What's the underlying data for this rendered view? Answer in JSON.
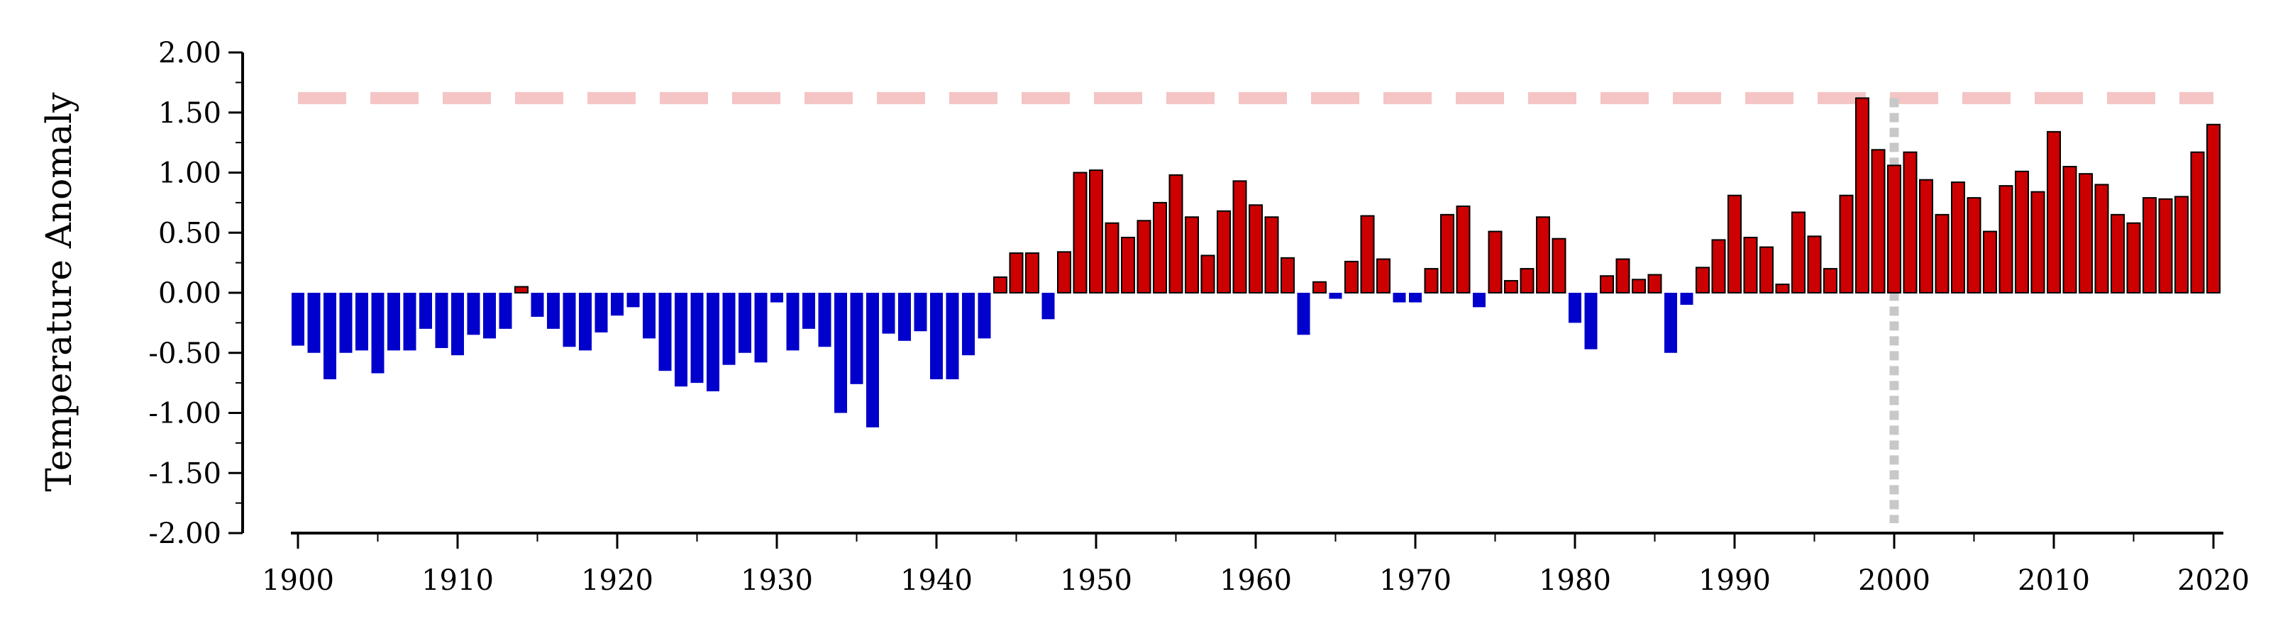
{
  "chart_data": {
    "type": "bar",
    "title": "",
    "xlabel": "",
    "ylabel": "Temperature Anomaly",
    "x": [
      1900,
      1901,
      1902,
      1903,
      1904,
      1905,
      1906,
      1907,
      1908,
      1909,
      1910,
      1911,
      1912,
      1913,
      1914,
      1915,
      1916,
      1917,
      1918,
      1919,
      1920,
      1921,
      1922,
      1923,
      1924,
      1925,
      1926,
      1927,
      1928,
      1929,
      1930,
      1931,
      1932,
      1933,
      1934,
      1935,
      1936,
      1937,
      1938,
      1939,
      1940,
      1941,
      1942,
      1943,
      1944,
      1945,
      1946,
      1947,
      1948,
      1949,
      1950,
      1951,
      1952,
      1953,
      1954,
      1955,
      1956,
      1957,
      1958,
      1959,
      1960,
      1961,
      1962,
      1963,
      1964,
      1965,
      1966,
      1967,
      1968,
      1969,
      1970,
      1971,
      1972,
      1973,
      1974,
      1975,
      1976,
      1977,
      1978,
      1979,
      1980,
      1981,
      1982,
      1983,
      1984,
      1985,
      1986,
      1987,
      1988,
      1989,
      1990,
      1991,
      1992,
      1993,
      1994,
      1995,
      1996,
      1997,
      1998,
      1999,
      2000,
      2001,
      2002,
      2003,
      2004,
      2005,
      2006,
      2007,
      2008,
      2009,
      2010,
      2011,
      2012,
      2013,
      2014,
      2015,
      2016,
      2017,
      2018,
      2019,
      2020
    ],
    "values": [
      -0.44,
      -0.5,
      -0.72,
      -0.5,
      -0.48,
      -0.67,
      -0.48,
      -0.48,
      -0.3,
      -0.46,
      -0.52,
      -0.35,
      -0.38,
      -0.3,
      0.05,
      -0.2,
      -0.3,
      -0.45,
      -0.48,
      -0.33,
      -0.19,
      -0.12,
      -0.38,
      -0.65,
      -0.78,
      -0.75,
      -0.82,
      -0.6,
      -0.5,
      -0.58,
      -0.08,
      -0.48,
      -0.3,
      -0.45,
      -1.0,
      -0.76,
      -1.12,
      -0.34,
      -0.4,
      -0.32,
      -0.72,
      -0.72,
      -0.52,
      -0.38,
      0.13,
      0.33,
      0.33,
      -0.22,
      0.34,
      1.0,
      1.02,
      0.58,
      0.46,
      0.6,
      0.75,
      0.98,
      0.63,
      0.31,
      0.68,
      0.93,
      0.73,
      0.63,
      0.29,
      -0.35,
      0.09,
      -0.05,
      0.26,
      0.64,
      0.28,
      -0.08,
      -0.08,
      0.2,
      0.65,
      0.72,
      -0.12,
      0.51,
      0.1,
      0.2,
      0.63,
      0.45,
      -0.25,
      -0.47,
      0.14,
      0.28,
      0.11,
      0.15,
      -0.5,
      -0.1,
      0.21,
      0.44,
      0.81,
      0.46,
      0.38,
      0.07,
      0.67,
      0.47,
      0.2,
      0.81,
      1.62,
      1.19,
      1.06,
      1.17,
      0.94,
      0.65,
      0.92,
      0.79,
      0.51,
      0.89,
      1.01,
      0.84,
      1.34,
      1.05,
      0.99,
      0.9,
      0.65,
      0.58,
      0.79,
      0.78,
      0.8,
      1.17,
      1.4
    ],
    "ylim": [
      -2.0,
      2.0
    ],
    "xlim": [
      1900,
      2020
    ],
    "y_ticks": [
      "2.00",
      "1.50",
      "1.00",
      "0.50",
      "0.00",
      "-0.50",
      "-1.00",
      "-1.50",
      "-2.00"
    ],
    "x_ticks": [
      "1900",
      "1910",
      "1920",
      "1930",
      "1940",
      "1950",
      "1960",
      "1970",
      "1980",
      "1990",
      "2000",
      "2010",
      "2020"
    ],
    "reference_line_value": 1.62,
    "reference_line_year": 2000,
    "colors": {
      "positive": "#cc0000",
      "negative": "#0000cc",
      "bar_outline": "#000000",
      "reference_line": "#f5c4c4",
      "year_marker": "#c8c8c8"
    },
    "grid": false,
    "legend": "none"
  }
}
